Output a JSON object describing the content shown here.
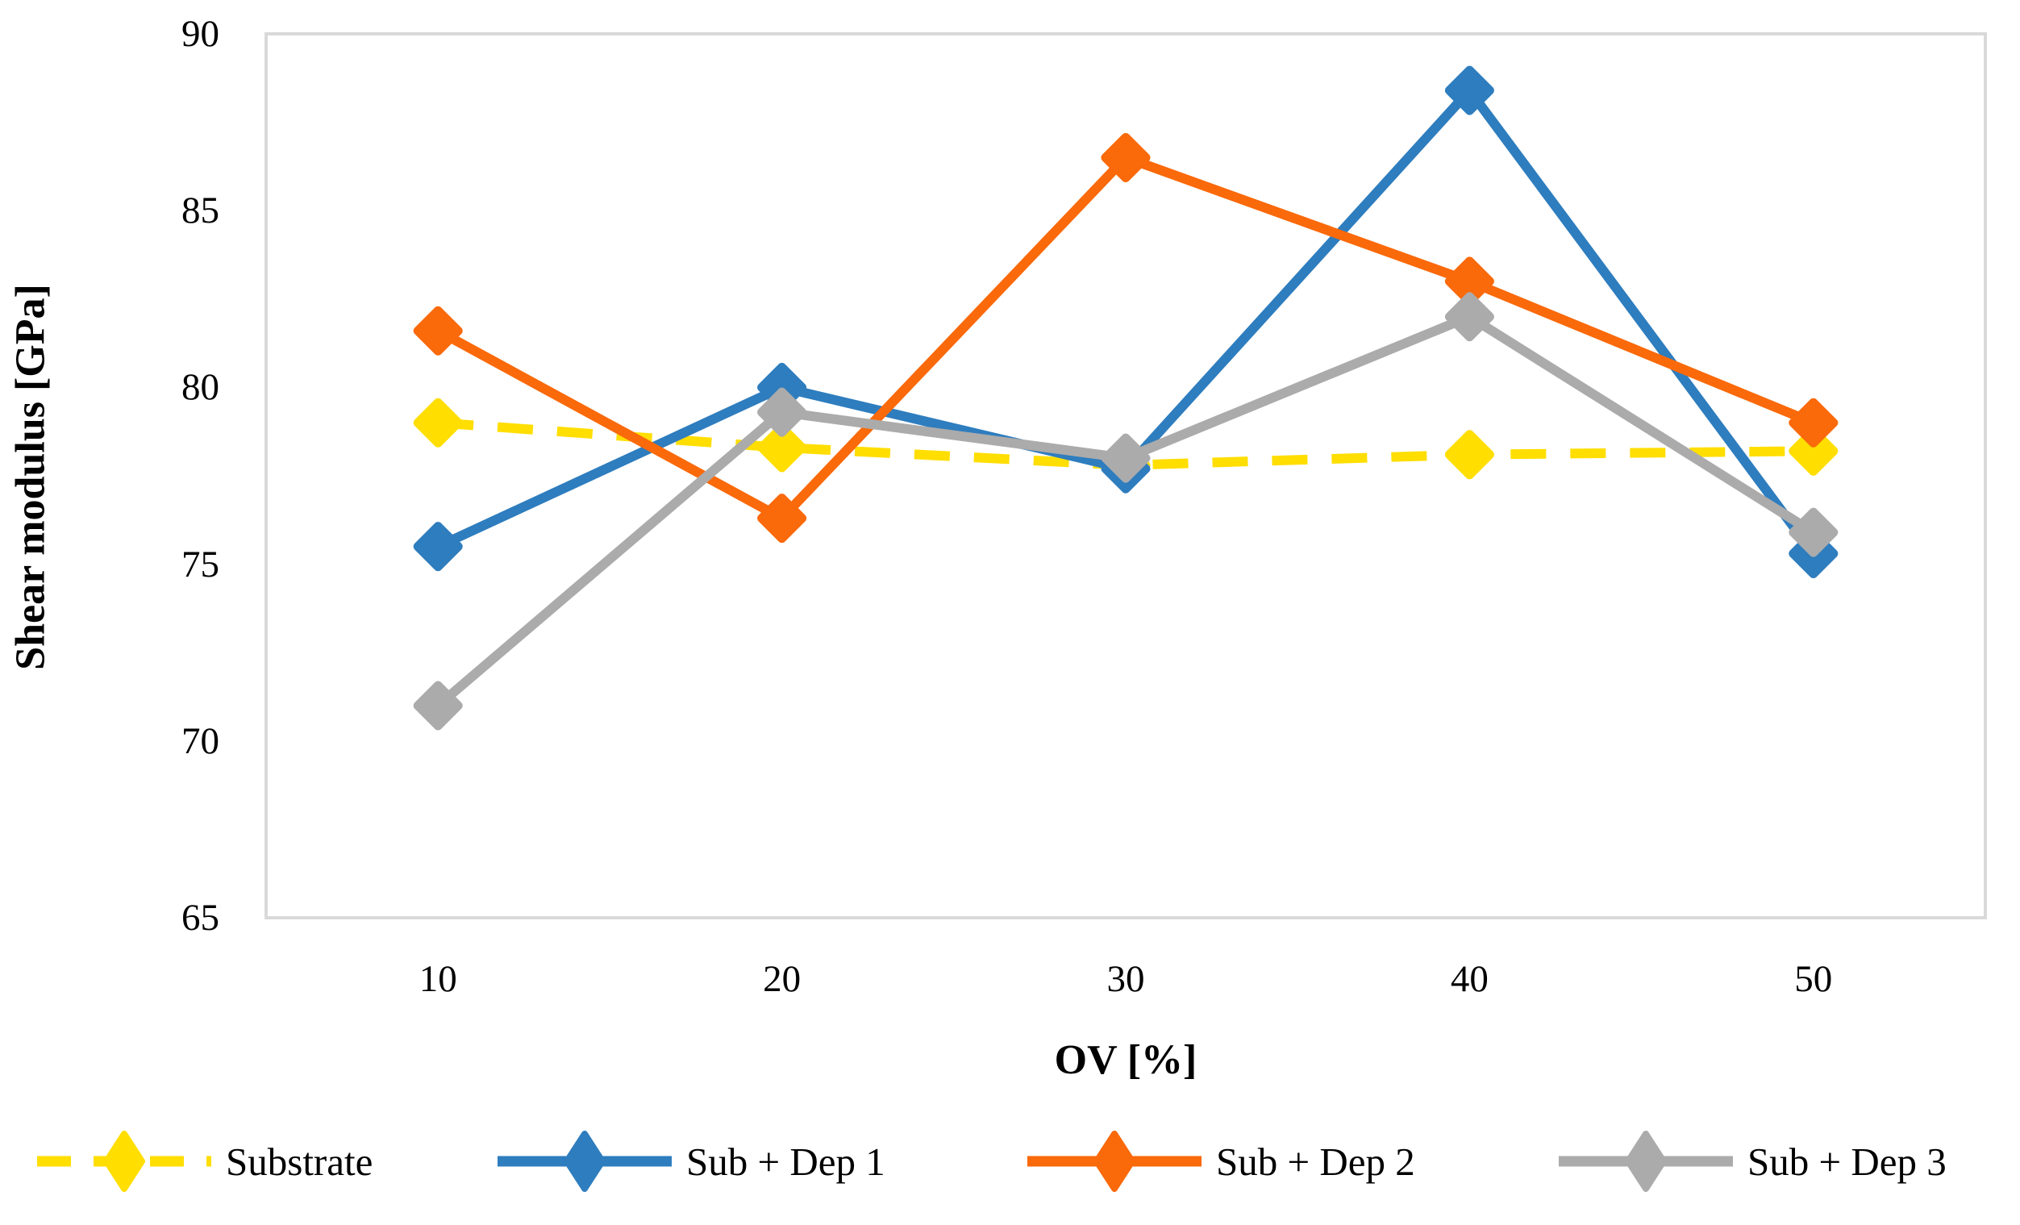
{
  "chart_data": {
    "type": "line",
    "title": "",
    "xlabel": "OV [%]",
    "ylabel": "Shear modulus [GPa]",
    "categories": [
      10,
      20,
      30,
      40,
      50
    ],
    "ylim": [
      65,
      90
    ],
    "yticks": [
      90,
      85,
      80,
      75,
      70,
      65
    ],
    "grid": false,
    "legend_position": "bottom",
    "marker": "diamond",
    "axis_color": "#D9D9D9",
    "text_color": "#000000",
    "series": [
      {
        "name": "Substrate",
        "color": "#FFDE00",
        "dashed": true,
        "values": [
          79.0,
          78.3,
          77.8,
          78.1,
          78.2
        ]
      },
      {
        "name": "Sub + Dep 1",
        "color": "#2E7DBE",
        "dashed": false,
        "values": [
          75.5,
          80.0,
          77.7,
          88.4,
          75.3
        ]
      },
      {
        "name": "Sub + Dep 2",
        "color": "#FA690A",
        "dashed": false,
        "values": [
          81.6,
          76.3,
          86.5,
          83.0,
          79.0
        ]
      },
      {
        "name": "Sub + Dep 3",
        "color": "#ABABAB",
        "dashed": false,
        "values": [
          71.0,
          79.3,
          78.0,
          82.0,
          75.9
        ]
      }
    ]
  }
}
